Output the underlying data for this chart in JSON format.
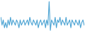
{
  "values": [
    2,
    -1,
    1,
    -2,
    0,
    -2,
    1,
    -1,
    2,
    -1,
    1,
    0,
    -1,
    1,
    0,
    -2,
    1,
    -1,
    0,
    1,
    -1,
    0,
    1,
    -1,
    2,
    0,
    -1,
    1,
    0,
    -1,
    1,
    -2,
    0,
    1,
    -1,
    0,
    1,
    -2,
    1,
    -1,
    8,
    -3,
    1,
    0,
    -1,
    2,
    -2,
    1,
    0,
    2,
    -1,
    1,
    0,
    -1,
    2,
    -1,
    0,
    1,
    -2,
    1,
    0,
    -1,
    1,
    0,
    -1,
    1,
    -2,
    0,
    1,
    -1
  ],
  "line_color": "#4ba3d3",
  "background_color": "#ffffff",
  "linewidth": 0.8
}
